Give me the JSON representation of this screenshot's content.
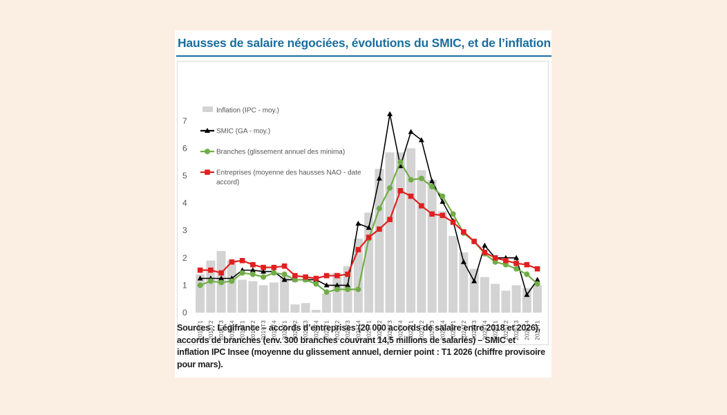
{
  "title": "Hausses de salaire négociées, évolutions du SMIC, et de l’inflation",
  "sources": "Sources : Légifrance – accords d’entreprises (20 000 accords de salaire entre 2018 et 2026), accords de branches (env. 300 branches couvrant 14,5 millions de salariés) – SMIC et inflation IPC Insee (moyenne du glissement annuel, dernier point : T1 2026 (chiffre provisoire pour mars).",
  "chart_data": {
    "type": "bar+line",
    "categories": [
      "2018T1",
      "2018T2",
      "2018T3",
      "2018T4",
      "2019T1",
      "2019T2",
      "2019T3",
      "2019T4",
      "2020T1",
      "2020T2",
      "2020T3",
      "2020T4",
      "2021T1",
      "2021T2",
      "2021T3",
      "2021T4",
      "2022T1",
      "2022T2",
      "2022T3",
      "2022T4",
      "2023T1",
      "2023T2",
      "2023T3",
      "2023T4",
      "2024T1",
      "2024T2",
      "2024T3",
      "2024T4",
      "2025T1",
      "2025T2",
      "2025T3",
      "2025T4",
      "2026T1"
    ],
    "ylim": [
      0,
      7.5
    ],
    "yticks": [
      "0",
      "1",
      "2",
      "3",
      "4",
      "5",
      "6",
      "7"
    ],
    "grid": false,
    "legend_position": "top-left",
    "series": [
      {
        "name": "Inflation (IPC - moy.)",
        "kind": "bar",
        "color": "#d3d3d3",
        "values": [
          1.4,
          1.9,
          2.25,
          1.9,
          1.2,
          1.15,
          1.0,
          1.1,
          1.35,
          0.3,
          0.35,
          0.1,
          0.7,
          1.45,
          1.7,
          2.7,
          3.65,
          5.25,
          5.85,
          5.85,
          6.0,
          5.2,
          4.85,
          3.7,
          2.8,
          2.2,
          1.6,
          1.3,
          1.05,
          0.8,
          1.0,
          0.9,
          1.0
        ]
      },
      {
        "name": "SMIC (GA - moy.)",
        "kind": "line",
        "marker": "triangle",
        "color": "#000000",
        "values": [
          1.25,
          1.25,
          1.25,
          1.25,
          1.55,
          1.55,
          1.5,
          1.5,
          1.2,
          1.2,
          1.2,
          1.2,
          1.0,
          1.0,
          1.0,
          3.25,
          3.1,
          4.9,
          7.25,
          5.35,
          6.6,
          6.3,
          4.8,
          4.05,
          3.35,
          1.85,
          1.15,
          2.45,
          2.0,
          2.0,
          2.0,
          0.65,
          1.2
        ]
      },
      {
        "name": "Branches (glissement annuel des minima)",
        "kind": "line",
        "marker": "circle",
        "color": "#70ad47",
        "values": [
          1.0,
          1.15,
          1.1,
          1.15,
          1.45,
          1.4,
          1.3,
          1.45,
          1.4,
          1.2,
          1.2,
          1.05,
          0.75,
          0.85,
          0.85,
          0.85,
          2.7,
          3.8,
          4.55,
          5.5,
          4.85,
          4.9,
          4.6,
          4.25,
          3.6,
          2.9,
          2.6,
          2.15,
          1.85,
          1.75,
          1.6,
          1.4,
          1.05
        ]
      },
      {
        "name": "Entreprises (moyenne des hausses NAO - date accord)",
        "name_lines": [
          "Entreprises (moyenne des hausses NAO - date",
          "accord)"
        ],
        "kind": "line",
        "marker": "square",
        "color": "#e02020",
        "values": [
          1.55,
          1.55,
          1.45,
          1.85,
          1.9,
          1.75,
          1.65,
          1.65,
          1.7,
          1.35,
          1.3,
          1.25,
          1.35,
          1.35,
          1.4,
          2.3,
          2.75,
          3.05,
          3.4,
          4.45,
          4.25,
          3.9,
          3.6,
          3.55,
          3.3,
          2.95,
          2.6,
          2.2,
          2.0,
          1.9,
          1.8,
          1.75,
          1.6
        ]
      }
    ]
  }
}
